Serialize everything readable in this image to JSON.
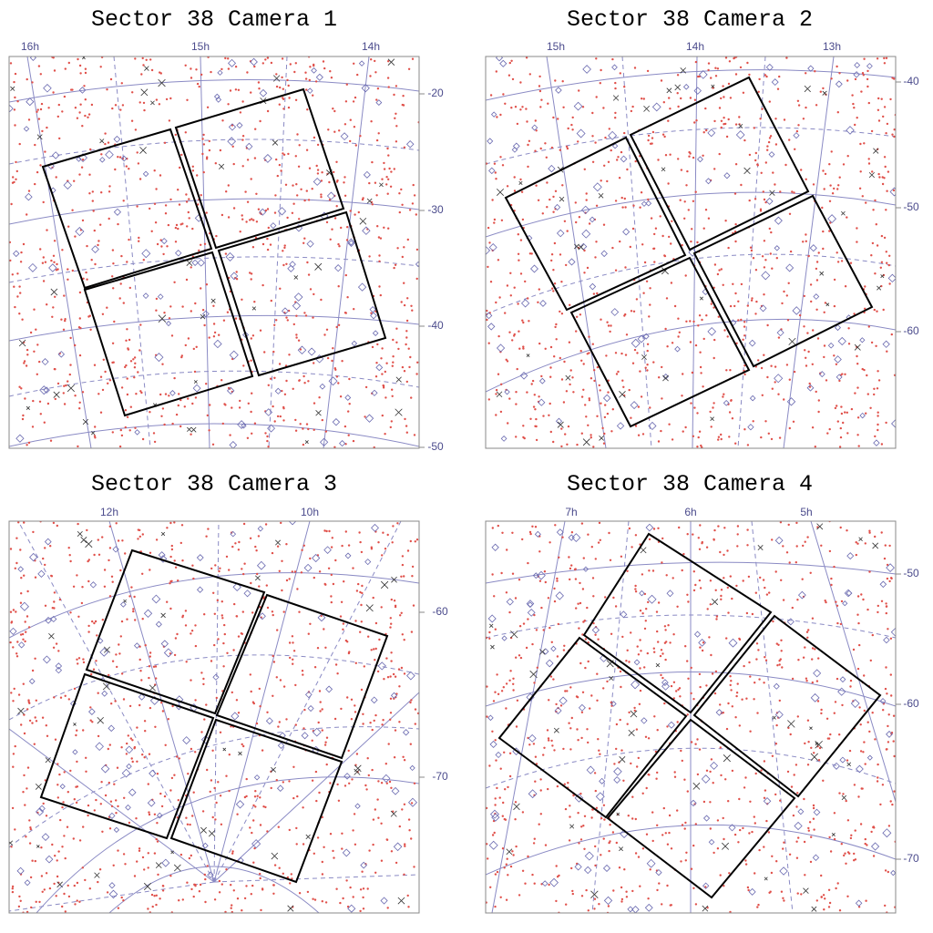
{
  "panels": [
    {
      "title": "Sector 38 Camera 1",
      "ra_labels": [
        "16h",
        "15h",
        "14h"
      ],
      "dec_labels": [
        "-20",
        "-30",
        "-40",
        "-50"
      ]
    },
    {
      "title": "Sector 38 Camera 2",
      "ra_labels": [
        "15h",
        "14h",
        "13h"
      ],
      "dec_labels": [
        "-40",
        "-50",
        "-60"
      ]
    },
    {
      "title": "Sector 38 Camera 3",
      "ra_labels": [
        "12h",
        "10h"
      ],
      "dec_labels": [
        "-60",
        "-70"
      ]
    },
    {
      "title": "Sector 38 Camera 4",
      "ra_labels": [
        "7h",
        "6h",
        "5h"
      ],
      "dec_labels": [
        "-50",
        "-60",
        "-70"
      ]
    }
  ]
}
